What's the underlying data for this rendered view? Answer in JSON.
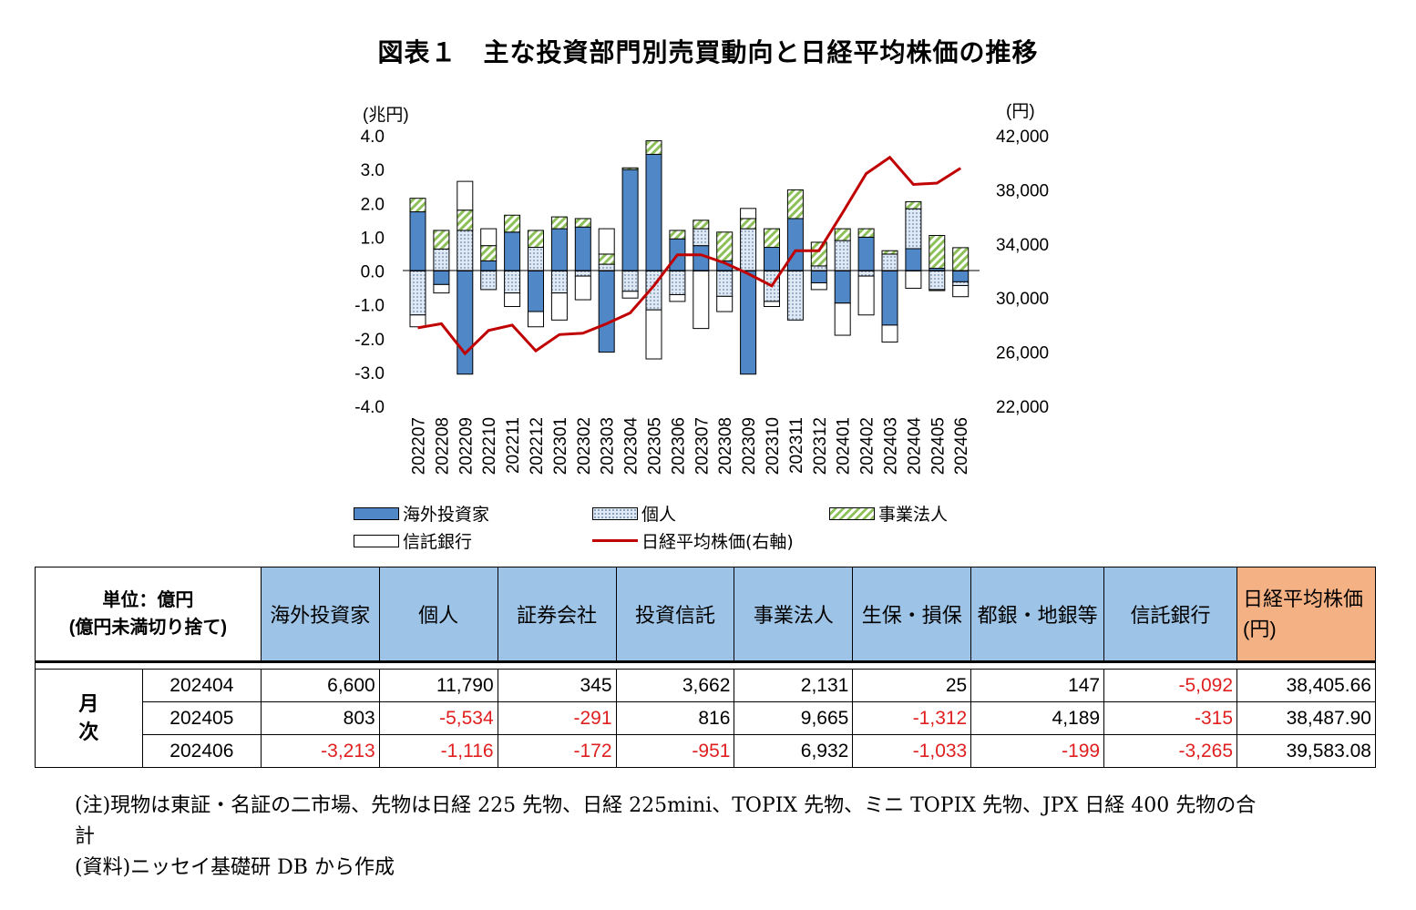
{
  "title": "図表１　主な投資部門別売買動向と日経平均株価の推移",
  "chart_data": {
    "type": "bar",
    "stacked": true,
    "categories": [
      "202207",
      "202208",
      "202209",
      "202210",
      "202211",
      "202212",
      "202301",
      "202302",
      "202303",
      "202304",
      "202305",
      "202306",
      "202307",
      "202308",
      "202309",
      "202310",
      "202311",
      "202312",
      "202401",
      "202402",
      "202403",
      "202404",
      "202405",
      "202406"
    ],
    "y_left_unit": "(兆円)",
    "y_right_unit": "(円)",
    "y_left_lim": [
      -4.0,
      4.0
    ],
    "y_left_ticks": [
      "4.0",
      "3.0",
      "2.0",
      "1.0",
      "0.0",
      "-1.0",
      "-2.0",
      "-3.0",
      "-4.0"
    ],
    "y_right_lim": [
      22000,
      42000
    ],
    "y_right_ticks": [
      "42,000",
      "38,000",
      "34,000",
      "30,000",
      "26,000",
      "22,000"
    ],
    "series": [
      {
        "name": "海外投資家",
        "color": "#4f87c7",
        "values": [
          1.75,
          -0.4,
          -3.05,
          0.3,
          1.15,
          -1.2,
          1.25,
          1.3,
          -2.4,
          3.0,
          3.45,
          0.95,
          0.75,
          0.3,
          -3.05,
          0.7,
          1.55,
          -0.35,
          -0.95,
          1.0,
          -1.6,
          0.66,
          0.08,
          -0.32
        ]
      },
      {
        "name": "個人",
        "color": "#dfe9f5",
        "values": [
          -1.3,
          0.65,
          1.2,
          -0.55,
          -0.65,
          0.7,
          -0.65,
          -0.15,
          0.2,
          -0.6,
          -1.15,
          -0.7,
          0.5,
          -0.75,
          1.25,
          -0.9,
          -1.45,
          0.15,
          0.9,
          -0.15,
          0.5,
          1.18,
          -0.55,
          -0.11
        ]
      },
      {
        "name": "事業法人",
        "color": "#8ec05a",
        "values": [
          0.4,
          0.55,
          0.6,
          0.45,
          0.5,
          0.5,
          0.35,
          0.25,
          0.3,
          0.05,
          0.4,
          0.25,
          0.25,
          0.85,
          0.3,
          0.55,
          0.85,
          0.7,
          0.35,
          0.25,
          0.1,
          0.21,
          0.97,
          0.69
        ]
      },
      {
        "name": "信託銀行",
        "color": "#ffffff",
        "values": [
          -0.35,
          -0.25,
          0.85,
          0.5,
          -0.4,
          -0.45,
          -0.8,
          -0.7,
          0.75,
          -0.2,
          -1.45,
          -0.2,
          -1.7,
          -0.45,
          0.3,
          -0.15,
          0.0,
          -0.2,
          -0.95,
          -1.15,
          -0.5,
          -0.51,
          -0.03,
          -0.33
        ]
      }
    ],
    "line": {
      "name": "日経平均株価(右軸)",
      "color": "#c00000",
      "values": [
        27800,
        28100,
        25900,
        27600,
        28000,
        26100,
        27300,
        27400,
        28100,
        28900,
        30900,
        33200,
        33200,
        32600,
        31800,
        30900,
        33500,
        33500,
        36300,
        39200,
        40400,
        38400,
        38500,
        39600
      ]
    }
  },
  "legend": {
    "foreign": "海外投資家",
    "individual": "個人",
    "corporate": "事業法人",
    "trust": "信託銀行",
    "nikkei": "日経平均株価(右軸)"
  },
  "table": {
    "unit_line1": "単位：億円",
    "unit_line2": "(億円未満切り捨て)",
    "headers": [
      "海外投資家",
      "個人",
      "証券会社",
      "投資信託",
      "事業法人",
      "生保・損保",
      "都銀・地銀等",
      "信託銀行"
    ],
    "nikkei_header_line1": "日経平均株価",
    "nikkei_header_line2": "(円)",
    "side_label_1": "月",
    "side_label_2": "次",
    "rows": [
      {
        "month": "202404",
        "values": [
          "6,600",
          "11,790",
          "345",
          "3,662",
          "2,131",
          "25",
          "147",
          "-5,092",
          "38,405.66"
        ]
      },
      {
        "month": "202405",
        "values": [
          "803",
          "-5,534",
          "-291",
          "816",
          "9,665",
          "-1,312",
          "4,189",
          "-315",
          "38,487.90"
        ]
      },
      {
        "month": "202406",
        "values": [
          "-3,213",
          "-1,116",
          "-172",
          "-951",
          "6,932",
          "-1,033",
          "-199",
          "-3,265",
          "39,583.08"
        ]
      }
    ]
  },
  "notes": {
    "note1": "(注)現物は東証・名証の二市場、先物は日経 225 先物、日経 225mini、TOPIX 先物、ミニ TOPIX 先物、JPX 日経 400 先物の合計",
    "note2": "(資料)ニッセイ基礎研 DB から作成"
  }
}
